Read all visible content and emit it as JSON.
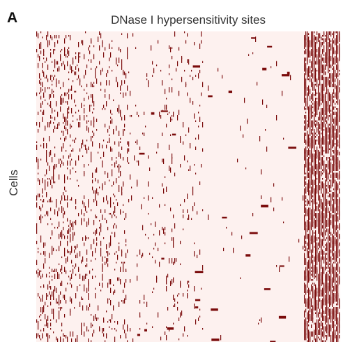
{
  "panel_label": "A",
  "chart_data": {
    "type": "heatmap",
    "title": "DNase I hypersensitivity sites",
    "xlabel": "",
    "ylabel": "Cells",
    "binary": true,
    "values_meaning": "1 = accessible site, 0 = not accessible",
    "colors": {
      "background": "#fdf1ef",
      "mark": "#7a0b0b"
    },
    "dense_regions": [
      {
        "site_range": [
          0.0,
          0.3
        ],
        "density": "sparse-moderate"
      },
      {
        "site_range": [
          0.3,
          0.55
        ],
        "density": "sparse"
      },
      {
        "site_range": [
          0.55,
          0.88
        ],
        "density": "very sparse"
      },
      {
        "site_range": [
          0.88,
          1.0
        ],
        "density": "dense"
      }
    ],
    "grid": false,
    "legend": "none"
  }
}
